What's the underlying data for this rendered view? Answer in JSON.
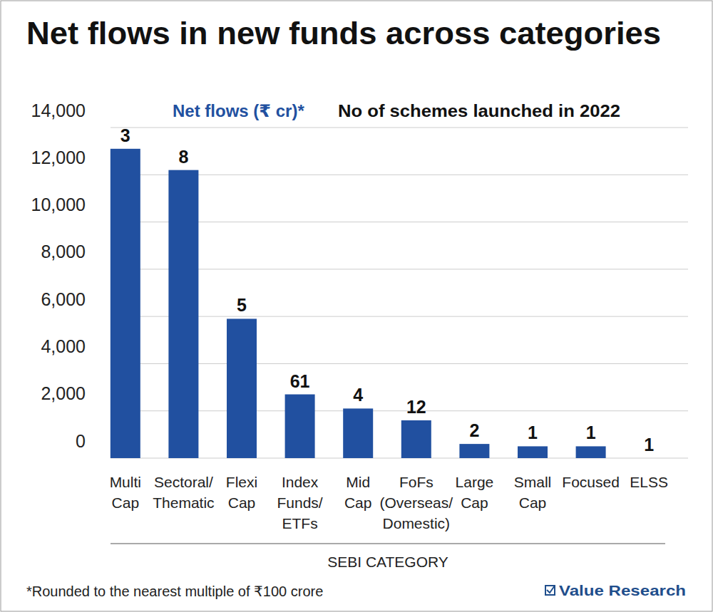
{
  "chart_data": {
    "type": "bar",
    "title": "Net flows in new funds across categories",
    "ylabel": "Net flows (₹ cr)*",
    "schemes_label": "No of schemes launched in 2022",
    "xlabel": "SEBI CATEGORY",
    "note": "*Rounded to the nearest multiple of ₹100 crore",
    "source": "Value Research",
    "categories": [
      "Multi Cap",
      "Sectoral/ Thematic",
      "Flexi Cap",
      "Index Funds/ ETFs",
      "Mid Cap",
      "FoFs (Overseas/ Domestic)",
      "Large Cap",
      "Small Cap",
      "Focused",
      "ELSS"
    ],
    "values": [
      13100,
      12200,
      5900,
      2700,
      2100,
      1600,
      600,
      500,
      500,
      0
    ],
    "schemes_launched": [
      3,
      8,
      5,
      61,
      4,
      12,
      2,
      1,
      1,
      1
    ],
    "color": "#2150a0",
    "ylim": [
      0,
      14000
    ],
    "yticks": [
      0,
      {
        "value": 2000,
        "label": "2,000"
      },
      {
        "value": 4000,
        "label": "4,000"
      },
      {
        "value": 6000,
        "label": "6,000"
      },
      {
        "value": 8000,
        "label": "8,000"
      },
      {
        "value": 10000,
        "label": "10,000"
      },
      {
        "value": 12000,
        "label": "12,000"
      },
      {
        "value": 14000,
        "label": "14,000"
      }
    ],
    "grid": true,
    "data_labels": false
  }
}
